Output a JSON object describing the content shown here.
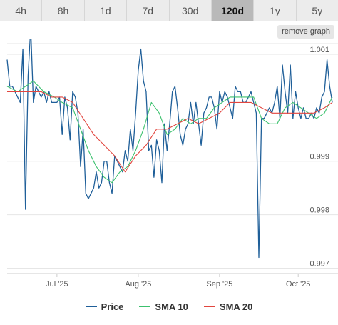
{
  "range_tabs": [
    {
      "label": "4h"
    },
    {
      "label": "8h"
    },
    {
      "label": "1d"
    },
    {
      "label": "7d"
    },
    {
      "label": "30d"
    },
    {
      "label": "120d",
      "active": true
    },
    {
      "label": "1y"
    },
    {
      "label": "5y"
    }
  ],
  "remove_graph_label": "remove graph",
  "colors": {
    "price": "#1f5f99",
    "sma10": "#3cc16e",
    "sma20": "#e2463f",
    "grid": "#e6e6e6"
  },
  "chart_data": {
    "type": "line",
    "title": "",
    "xlabel": "",
    "ylabel": "",
    "ylim": [
      0.9969,
      1.0012
    ],
    "xlim": [
      "2025-06-12",
      "2025-10-14"
    ],
    "y_ticks": [
      {
        "value": 0.997,
        "label": "0.997"
      },
      {
        "value": 0.998,
        "label": "0.998"
      },
      {
        "value": 0.999,
        "label": "0.999"
      },
      {
        "value": 1.001,
        "label": "1.001"
      }
    ],
    "x_ticks": [
      {
        "date": "2025-07-01",
        "label": "Jul '25"
      },
      {
        "date": "2025-08-01",
        "label": "Aug '25"
      },
      {
        "date": "2025-09-01",
        "label": "Sep '25"
      },
      {
        "date": "2025-10-01",
        "label": "Oct '25"
      }
    ],
    "grid": true,
    "legend_position": "bottom",
    "legend": [
      "Price",
      "SMA 10",
      "SMA 20"
    ],
    "series": [
      {
        "name": "Price",
        "points": [
          [
            "2025-06-12",
            1.0009
          ],
          [
            "2025-06-13",
            1.0004
          ],
          [
            "2025-06-14",
            1.0004
          ],
          [
            "2025-06-15",
            1.0003
          ],
          [
            "2025-06-16",
            1.0002
          ],
          [
            "2025-06-17",
            1.0001
          ],
          [
            "2025-06-18",
            1.0011
          ],
          [
            "2025-06-19",
            0.9981
          ],
          [
            "2025-06-20",
            1.0006
          ],
          [
            "2025-06-21",
            1.0015
          ],
          [
            "2025-06-22",
            1.0001
          ],
          [
            "2025-06-23",
            1.0004
          ],
          [
            "2025-06-24",
            1.0003
          ],
          [
            "2025-06-25",
            1.0002
          ],
          [
            "2025-06-26",
            1.0003
          ],
          [
            "2025-06-27",
            1.0001
          ],
          [
            "2025-06-28",
            1.0003
          ],
          [
            "2025-06-29",
            1.0001
          ],
          [
            "2025-06-30",
            1.0001
          ],
          [
            "2025-07-01",
            1.0001
          ],
          [
            "2025-07-02",
            1.0002
          ],
          [
            "2025-07-03",
            0.9995
          ],
          [
            "2025-07-04",
            1.0002
          ],
          [
            "2025-07-05",
            1.0
          ],
          [
            "2025-07-06",
            0.9994
          ],
          [
            "2025-07-07",
            1.0003
          ],
          [
            "2025-07-08",
            1.0002
          ],
          [
            "2025-07-09",
            0.9999
          ],
          [
            "2025-07-10",
            0.9989
          ],
          [
            "2025-07-11",
            0.9996
          ],
          [
            "2025-07-12",
            0.9984
          ],
          [
            "2025-07-13",
            0.9983
          ],
          [
            "2025-07-14",
            0.9984
          ],
          [
            "2025-07-15",
            0.9985
          ],
          [
            "2025-07-16",
            0.9988
          ],
          [
            "2025-07-17",
            0.9985
          ],
          [
            "2025-07-18",
            0.9986
          ],
          [
            "2025-07-19",
            0.999
          ],
          [
            "2025-07-20",
            0.999
          ],
          [
            "2025-07-21",
            0.9986
          ],
          [
            "2025-07-22",
            0.9984
          ],
          [
            "2025-07-23",
            0.9991
          ],
          [
            "2025-07-24",
            0.999
          ],
          [
            "2025-07-25",
            0.9989
          ],
          [
            "2025-07-26",
            0.9988
          ],
          [
            "2025-07-27",
            0.9992
          ],
          [
            "2025-07-28",
            0.999
          ],
          [
            "2025-07-29",
            0.9996
          ],
          [
            "2025-07-30",
            0.9992
          ],
          [
            "2025-07-31",
            0.9999
          ],
          [
            "2025-08-01",
            1.0007
          ],
          [
            "2025-08-02",
            1.0011
          ],
          [
            "2025-08-03",
            1.0005
          ],
          [
            "2025-08-04",
            1.0003
          ],
          [
            "2025-08-05",
            0.9992
          ],
          [
            "2025-08-06",
            0.9993
          ],
          [
            "2025-08-07",
            0.9987
          ],
          [
            "2025-08-08",
            0.9994
          ],
          [
            "2025-08-09",
            0.9992
          ],
          [
            "2025-08-10",
            0.9986
          ],
          [
            "2025-08-11",
            0.9997
          ],
          [
            "2025-08-12",
            0.9992
          ],
          [
            "2025-08-13",
            0.9997
          ],
          [
            "2025-08-14",
            1.0003
          ],
          [
            "2025-08-15",
            1.0004
          ],
          [
            "2025-08-16",
            1.0
          ],
          [
            "2025-08-17",
            0.9995
          ],
          [
            "2025-08-18",
            0.9993
          ],
          [
            "2025-08-19",
            0.9996
          ],
          [
            "2025-08-20",
            0.9997
          ],
          [
            "2025-08-21",
            1.0001
          ],
          [
            "2025-08-22",
            0.9997
          ],
          [
            "2025-08-23",
            1.0001
          ],
          [
            "2025-08-24",
            0.9997
          ],
          [
            "2025-08-25",
            0.9993
          ],
          [
            "2025-08-26",
            0.9999
          ],
          [
            "2025-08-27",
            1.0
          ],
          [
            "2025-08-28",
            1.0002
          ],
          [
            "2025-08-29",
            1.0002
          ],
          [
            "2025-08-30",
            1.0
          ],
          [
            "2025-08-31",
            0.9996
          ],
          [
            "2025-09-01",
            1.0003
          ],
          [
            "2025-09-02",
            1.0001
          ],
          [
            "2025-09-03",
            1.0003
          ],
          [
            "2025-09-04",
            1.0002
          ],
          [
            "2025-09-05",
            1.0
          ],
          [
            "2025-09-06",
            0.9998
          ],
          [
            "2025-09-07",
            1.0004
          ],
          [
            "2025-09-08",
            1.0003
          ],
          [
            "2025-09-09",
            1.0003
          ],
          [
            "2025-09-10",
            1.0001
          ],
          [
            "2025-09-11",
            1.0001
          ],
          [
            "2025-09-12",
            1.0002
          ],
          [
            "2025-09-13",
            1.0003
          ],
          [
            "2025-09-14",
            1.0001
          ],
          [
            "2025-09-15",
            0.9999
          ],
          [
            "2025-09-16",
            0.9972
          ],
          [
            "2025-09-17",
            0.9998
          ],
          [
            "2025-09-18",
            0.9998
          ],
          [
            "2025-09-19",
            0.9999
          ],
          [
            "2025-09-20",
            1.0
          ],
          [
            "2025-09-21",
            0.9999
          ],
          [
            "2025-09-22",
            1.0001
          ],
          [
            "2025-09-23",
            1.0004
          ],
          [
            "2025-09-24",
            0.9998
          ],
          [
            "2025-09-25",
            1.0008
          ],
          [
            "2025-09-26",
            1.0003
          ],
          [
            "2025-09-27",
            0.9999
          ],
          [
            "2025-09-28",
            1.0008
          ],
          [
            "2025-09-29",
            0.9998
          ],
          [
            "2025-09-30",
            1.0003
          ],
          [
            "2025-10-01",
            1.0
          ],
          [
            "2025-10-02",
            0.9998
          ],
          [
            "2025-10-03",
            1.0
          ],
          [
            "2025-10-04",
            0.9998
          ],
          [
            "2025-10-05",
            0.9998
          ],
          [
            "2025-10-06",
            0.9999
          ],
          [
            "2025-10-07",
            0.9998
          ],
          [
            "2025-10-08",
            1.0
          ],
          [
            "2025-10-09",
            0.9999
          ],
          [
            "2025-10-10",
            1.0002
          ],
          [
            "2025-10-11",
            1.0003
          ],
          [
            "2025-10-12",
            1.0009
          ],
          [
            "2025-10-13",
            1.0004
          ],
          [
            "2025-10-14",
            1.0001
          ]
        ]
      },
      {
        "name": "SMA 10",
        "points": [
          [
            "2025-06-12",
            1.0004
          ],
          [
            "2025-06-16",
            1.0003
          ],
          [
            "2025-06-19",
            1.0004
          ],
          [
            "2025-06-22",
            1.0005
          ],
          [
            "2025-06-26",
            1.0003
          ],
          [
            "2025-06-30",
            1.0002
          ],
          [
            "2025-07-03",
            1.0001
          ],
          [
            "2025-07-07",
            1.0
          ],
          [
            "2025-07-10",
            0.9996
          ],
          [
            "2025-07-13",
            0.9992
          ],
          [
            "2025-07-16",
            0.9989
          ],
          [
            "2025-07-19",
            0.9987
          ],
          [
            "2025-07-22",
            0.9986
          ],
          [
            "2025-07-25",
            0.9988
          ],
          [
            "2025-07-28",
            0.9989
          ],
          [
            "2025-07-31",
            0.9992
          ],
          [
            "2025-08-03",
            0.9996
          ],
          [
            "2025-08-06",
            1.0001
          ],
          [
            "2025-08-09",
            0.9999
          ],
          [
            "2025-08-12",
            0.9995
          ],
          [
            "2025-08-15",
            0.9996
          ],
          [
            "2025-08-18",
            0.9998
          ],
          [
            "2025-08-21",
            0.9997
          ],
          [
            "2025-08-24",
            0.9998
          ],
          [
            "2025-08-27",
            0.9998
          ],
          [
            "2025-08-30",
            1.0
          ],
          [
            "2025-09-02",
            1.0001
          ],
          [
            "2025-09-05",
            1.0002
          ],
          [
            "2025-09-08",
            1.0002
          ],
          [
            "2025-09-11",
            1.0002
          ],
          [
            "2025-09-14",
            1.0002
          ],
          [
            "2025-09-17",
            0.9998
          ],
          [
            "2025-09-20",
            0.9997
          ],
          [
            "2025-09-23",
            0.9997
          ],
          [
            "2025-09-26",
            1.0
          ],
          [
            "2025-09-29",
            1.0001
          ],
          [
            "2025-10-02",
            1.0
          ],
          [
            "2025-10-05",
            0.9999
          ],
          [
            "2025-10-08",
            0.9998
          ],
          [
            "2025-10-11",
            0.9999
          ],
          [
            "2025-10-14",
            1.0002
          ]
        ]
      },
      {
        "name": "SMA 20",
        "points": [
          [
            "2025-06-12",
            1.0003
          ],
          [
            "2025-06-16",
            1.0003
          ],
          [
            "2025-06-20",
            1.0003
          ],
          [
            "2025-06-25",
            1.0003
          ],
          [
            "2025-06-29",
            1.0002
          ],
          [
            "2025-07-03",
            1.0002
          ],
          [
            "2025-07-07",
            1.0001
          ],
          [
            "2025-07-11",
            0.9998
          ],
          [
            "2025-07-15",
            0.9995
          ],
          [
            "2025-07-19",
            0.9993
          ],
          [
            "2025-07-23",
            0.9991
          ],
          [
            "2025-07-27",
            0.9988
          ],
          [
            "2025-07-31",
            0.9991
          ],
          [
            "2025-08-04",
            0.9993
          ],
          [
            "2025-08-08",
            0.9996
          ],
          [
            "2025-08-12",
            0.9996
          ],
          [
            "2025-08-16",
            0.9997
          ],
          [
            "2025-08-20",
            0.9998
          ],
          [
            "2025-08-24",
            0.9997
          ],
          [
            "2025-08-28",
            0.9998
          ],
          [
            "2025-09-01",
            0.9999
          ],
          [
            "2025-09-05",
            1.0001
          ],
          [
            "2025-09-09",
            1.0001
          ],
          [
            "2025-09-13",
            1.0001
          ],
          [
            "2025-09-17",
            1.0
          ],
          [
            "2025-09-21",
            0.9999
          ],
          [
            "2025-09-25",
            0.9999
          ],
          [
            "2025-09-29",
            0.9999
          ],
          [
            "2025-10-03",
            0.9999
          ],
          [
            "2025-10-07",
            0.9999
          ],
          [
            "2025-10-11",
            1.0
          ],
          [
            "2025-10-14",
            1.0001
          ]
        ]
      }
    ]
  }
}
